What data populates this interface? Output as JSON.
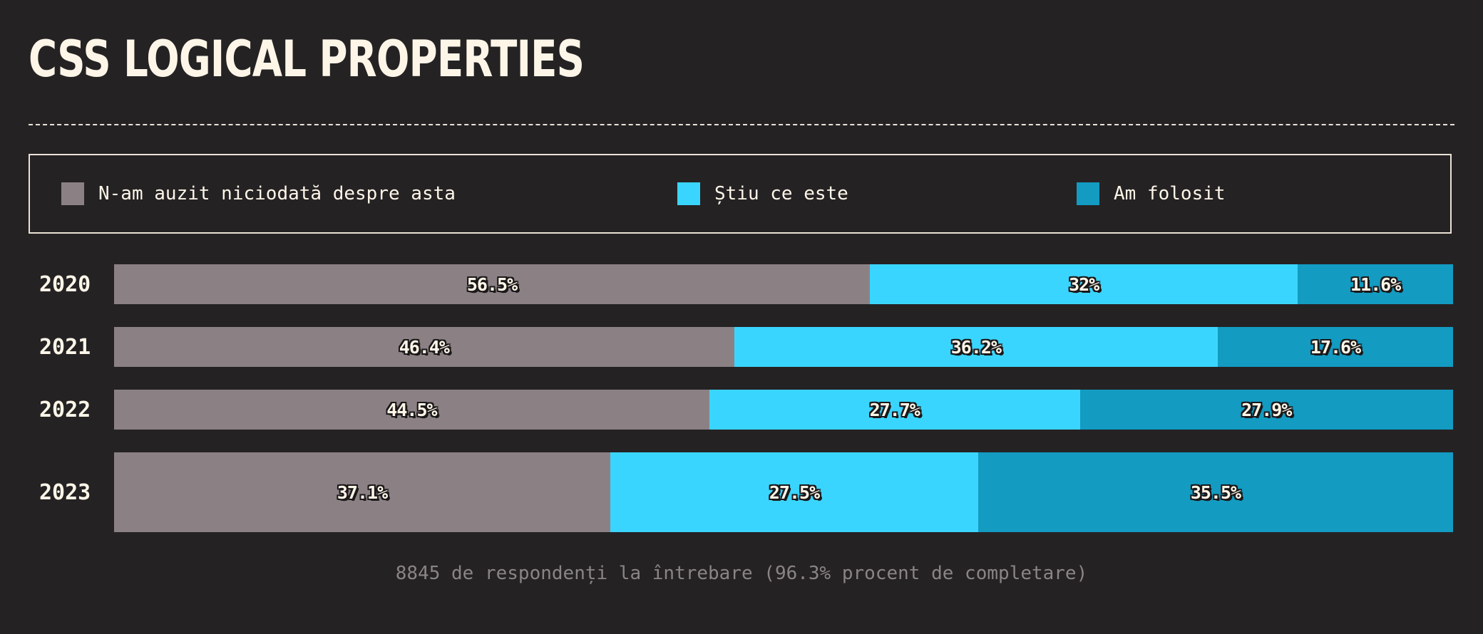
{
  "chart_data": {
    "type": "bar",
    "orientation": "horizontal",
    "stacked": true,
    "normalized": true,
    "title": "CSS LOGICAL PROPERTIES",
    "categories": [
      "2020",
      "2021",
      "2022",
      "2023"
    ],
    "series": [
      {
        "name": "N-am auzit niciodată despre asta",
        "color": "#8b8185",
        "values": [
          56.5,
          46.4,
          44.5,
          37.1
        ],
        "labels": [
          "56.5%",
          "46.4%",
          "44.5%",
          "37.1%"
        ]
      },
      {
        "name": "Știu ce este",
        "color": "#3ad5fe",
        "values": [
          32,
          36.2,
          27.7,
          27.5
        ],
        "labels": [
          "32%",
          "36.2%",
          "27.7%",
          "27.5%"
        ]
      },
      {
        "name": "Am folosit",
        "color": "#139bc2",
        "values": [
          11.6,
          17.6,
          27.9,
          35.5
        ],
        "labels": [
          "11.6%",
          "17.6%",
          "27.9%",
          "35.5%"
        ]
      }
    ],
    "legend_position": "top",
    "grid": false,
    "footnote": "8845 de respondenți la întrebare (96.3% procent de completare)"
  },
  "colors": {
    "background": "#252224",
    "text": "#fdf6e8",
    "muted_text": "#8a8486",
    "border": "#e9e2d6"
  }
}
